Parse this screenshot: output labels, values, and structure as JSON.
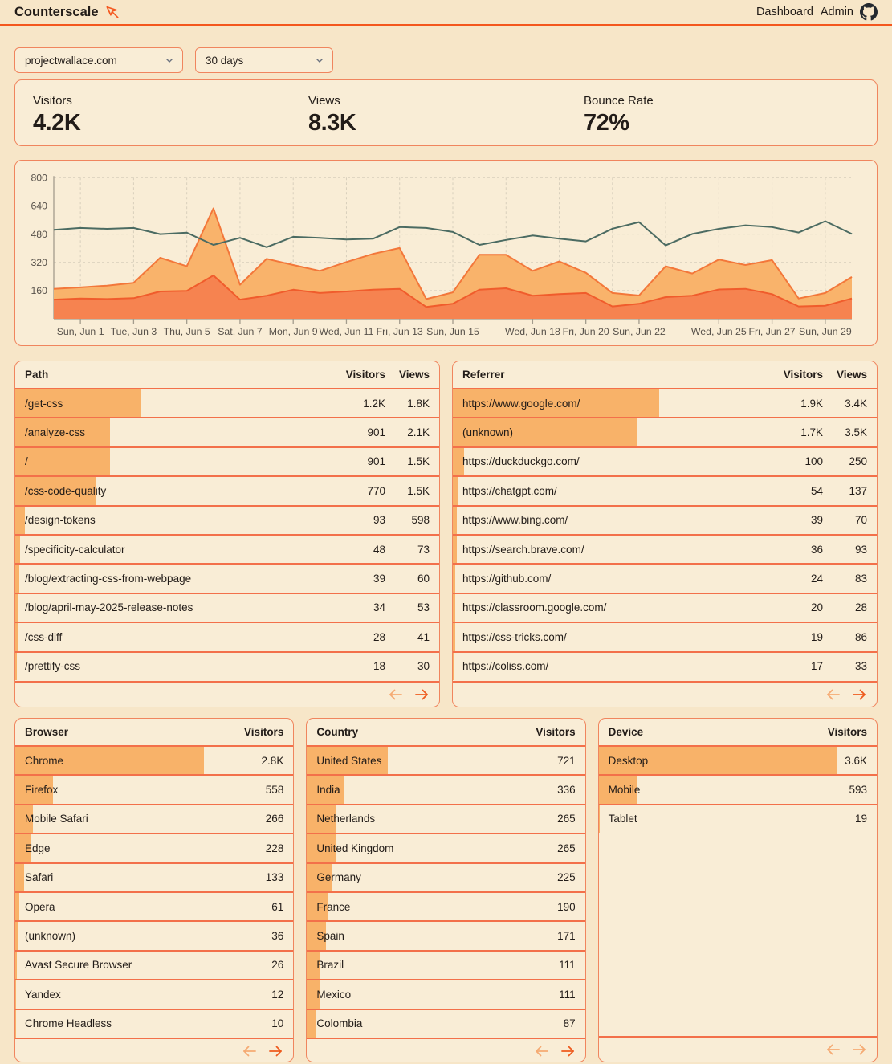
{
  "header": {
    "title": "Counterscale",
    "nav": [
      {
        "label": "Dashboard"
      },
      {
        "label": "Admin"
      }
    ]
  },
  "filters": {
    "site": "projectwallace.com",
    "range": "30 days"
  },
  "stats": [
    {
      "label": "Visitors",
      "value": "4.2K"
    },
    {
      "label": "Views",
      "value": "8.3K"
    },
    {
      "label": "Bounce Rate",
      "value": "72%"
    }
  ],
  "chart_data": {
    "type": "area",
    "ylim": [
      0,
      800
    ],
    "yticks": [
      160,
      320,
      480,
      640,
      800
    ],
    "points": 31,
    "x_ticks": [
      {
        "label": "Sun, Jun 1",
        "pos": 1
      },
      {
        "label": "Tue, Jun 3",
        "pos": 3
      },
      {
        "label": "Thu, Jun 5",
        "pos": 5
      },
      {
        "label": "Sat, Jun 7",
        "pos": 7
      },
      {
        "label": "Mon, Jun 9",
        "pos": 9
      },
      {
        "label": "Wed, Jun 11",
        "pos": 11
      },
      {
        "label": "Fri, Jun 13",
        "pos": 13
      },
      {
        "label": "Sun, Jun 15",
        "pos": 15
      },
      {
        "label": "Wed, Jun 18",
        "pos": 18
      },
      {
        "label": "Fri, Jun 20",
        "pos": 20
      },
      {
        "label": "Sun, Jun 22",
        "pos": 22
      },
      {
        "label": "Wed, Jun 25",
        "pos": 25
      },
      {
        "label": "Fri, Jun 27",
        "pos": 27
      },
      {
        "label": "Sun, Jun 29",
        "pos": 29
      }
    ],
    "grid_positions": [
      1,
      3,
      5,
      7,
      9,
      11,
      13,
      15,
      17,
      19,
      21,
      23,
      25,
      27,
      29
    ],
    "series": [
      {
        "name": "views-area",
        "values": [
          170,
          178,
          188,
          204,
          346,
          298,
          626,
          193,
          340,
          305,
          272,
          322,
          368,
          401,
          112,
          150,
          363,
          363,
          272,
          325,
          261,
          146,
          132,
          298,
          257,
          336,
          305,
          333,
          115,
          146,
          237
        ]
      },
      {
        "name": "visitors-area",
        "values": [
          109,
          115,
          112,
          117,
          155,
          158,
          246,
          109,
          131,
          165,
          146,
          155,
          165,
          170,
          67,
          85,
          165,
          173,
          131,
          140,
          146,
          70,
          85,
          123,
          131,
          166,
          170,
          140,
          70,
          74,
          115
        ]
      },
      {
        "name": "trend-line",
        "values": [
          504,
          515,
          510,
          515,
          480,
          488,
          419,
          459,
          406,
          465,
          459,
          450,
          454,
          520,
          515,
          492,
          419,
          447,
          472,
          454,
          439,
          511,
          548,
          416,
          481,
          510,
          530,
          520,
          489,
          553,
          481
        ]
      }
    ],
    "colors": {
      "upper_fill": "#f9b36b",
      "upper_stroke": "#f3773a",
      "lower_fill": "#f68350",
      "lower_stroke": "#f05c2c",
      "line": "#4b6b62",
      "grid": "#d8cfbc",
      "axis": "#a39c8d",
      "tick_text": "#57514a"
    }
  },
  "tables": [
    {
      "id": "path",
      "slot": "mid",
      "columns": [
        "Path",
        "Visitors",
        "Views"
      ],
      "rows": [
        [
          "/get-css",
          "1.2K",
          "1.8K"
        ],
        [
          "/analyze-css",
          "901",
          "2.1K"
        ],
        [
          "/",
          "901",
          "1.5K"
        ],
        [
          "/css-code-quality",
          "770",
          "1.5K"
        ],
        [
          "/design-tokens",
          "93",
          "598"
        ],
        [
          "/specificity-calculator",
          "48",
          "73"
        ],
        [
          "/blog/extracting-css-from-webpage",
          "39",
          "60"
        ],
        [
          "/blog/april-may-2025-release-notes",
          "34",
          "53"
        ],
        [
          "/css-diff",
          "28",
          "41"
        ],
        [
          "/prettify-css",
          "18",
          "30"
        ]
      ],
      "pagination": {
        "prev_enabled": false,
        "next_enabled": true
      }
    },
    {
      "id": "referrer",
      "slot": "mid",
      "columns": [
        "Referrer",
        "Visitors",
        "Views"
      ],
      "rows": [
        [
          "https://www.google.com/",
          "1.9K",
          "3.4K"
        ],
        [
          "(unknown)",
          "1.7K",
          "3.5K"
        ],
        [
          "https://duckduckgo.com/",
          "100",
          "250"
        ],
        [
          "https://chatgpt.com/",
          "54",
          "137"
        ],
        [
          "https://www.bing.com/",
          "39",
          "70"
        ],
        [
          "https://search.brave.com/",
          "36",
          "93"
        ],
        [
          "https://github.com/",
          "24",
          "83"
        ],
        [
          "https://classroom.google.com/",
          "20",
          "28"
        ],
        [
          "https://css-tricks.com/",
          "19",
          "86"
        ],
        [
          "https://coliss.com/",
          "17",
          "33"
        ]
      ],
      "pagination": {
        "prev_enabled": false,
        "next_enabled": true
      }
    },
    {
      "id": "browser",
      "slot": "bottom",
      "columns": [
        "Browser",
        "Visitors"
      ],
      "rows": [
        [
          "Chrome",
          "2.8K"
        ],
        [
          "Firefox",
          "558"
        ],
        [
          "Mobile Safari",
          "266"
        ],
        [
          "Edge",
          "228"
        ],
        [
          "Safari",
          "133"
        ],
        [
          "Opera",
          "61"
        ],
        [
          "(unknown)",
          "36"
        ],
        [
          "Avast Secure Browser",
          "26"
        ],
        [
          "Yandex",
          "12"
        ],
        [
          "Chrome Headless",
          "10"
        ]
      ],
      "pagination": {
        "prev_enabled": false,
        "next_enabled": true
      }
    },
    {
      "id": "country",
      "slot": "bottom",
      "columns": [
        "Country",
        "Visitors"
      ],
      "rows": [
        [
          "United States",
          "721"
        ],
        [
          "India",
          "336"
        ],
        [
          "Netherlands",
          "265"
        ],
        [
          "United Kingdom",
          "265"
        ],
        [
          "Germany",
          "225"
        ],
        [
          "France",
          "190"
        ],
        [
          "Spain",
          "171"
        ],
        [
          "Brazil",
          "111"
        ],
        [
          "Mexico",
          "111"
        ],
        [
          "Colombia",
          "87"
        ]
      ],
      "pagination": {
        "prev_enabled": false,
        "next_enabled": true
      }
    },
    {
      "id": "device",
      "slot": "bottom",
      "columns": [
        "Device",
        "Visitors"
      ],
      "rows": [
        [
          "Desktop",
          "3.6K"
        ],
        [
          "Mobile",
          "593"
        ],
        [
          "Tablet",
          "19"
        ]
      ],
      "pagination": {
        "prev_enabled": false,
        "next_enabled": false
      }
    }
  ],
  "colors": {
    "accent": "#f4571e",
    "bar": "#f8b269",
    "card_border": "#f0855e",
    "divider": "#f3704a",
    "arrow_on": "#ee5b1e",
    "arrow_off": "#f5ab73"
  }
}
